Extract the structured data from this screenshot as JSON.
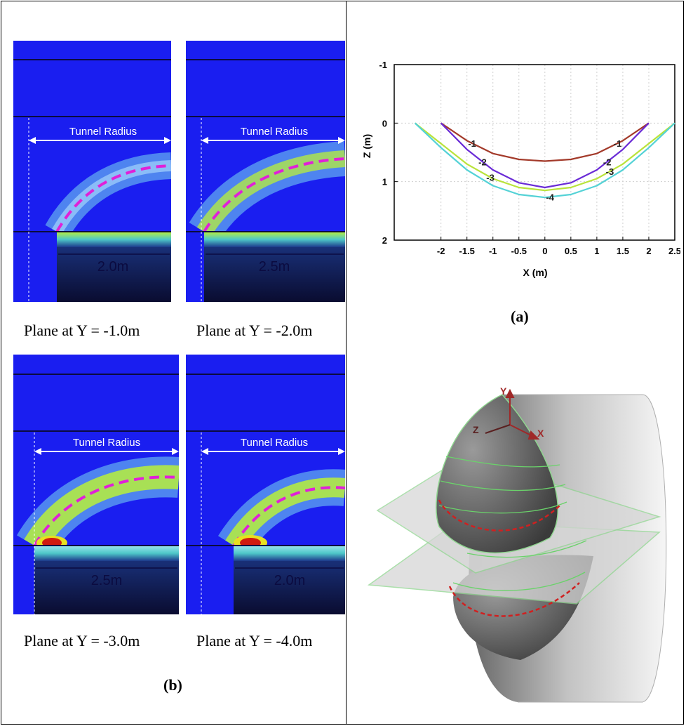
{
  "panels": [
    {
      "caption": "Plane at Y = -1.0m",
      "radius_label": "Tunnel Radius",
      "span_label": "2.0m",
      "has_red": false
    },
    {
      "caption": "Plane at Y = -2.0m",
      "radius_label": "Tunnel Radius",
      "span_label": "2.5m",
      "has_red": false
    },
    {
      "caption": "Plane at Y = -3.0m",
      "radius_label": "Tunnel Radius",
      "span_label": "2.5m",
      "has_red": true
    },
    {
      "caption": "Plane at Y = -4.0m",
      "radius_label": "Tunnel Radius",
      "span_label": "2.0m",
      "has_red": true
    }
  ],
  "labels": {
    "a": "(a)",
    "b": "(b)"
  },
  "chart_data": {
    "type": "line",
    "title": "",
    "xlabel": "X (m)",
    "ylabel": "Z (m)",
    "xlim": [
      -2.9,
      2.5
    ],
    "ylim": [
      -1,
      2
    ],
    "y_inverted": true,
    "x_ticks": [
      "-2",
      "-1.5",
      "-1",
      "-0.5",
      "0",
      "0.5",
      "1",
      "1.5",
      "2",
      "2.5"
    ],
    "y_ticks": [
      "-1",
      "0",
      "1",
      "2"
    ],
    "grid": true,
    "series": [
      {
        "name": "-1",
        "color": "#a33a2a",
        "x": [
          -2.0,
          -1.5,
          -1.0,
          -0.5,
          0,
          0.5,
          1.0,
          1.5,
          2.0
        ],
        "y": [
          0.0,
          0.3,
          0.52,
          0.62,
          0.65,
          0.62,
          0.52,
          0.3,
          0.0
        ]
      },
      {
        "name": "-2",
        "color": "#6a2bd6",
        "x": [
          -2.0,
          -1.5,
          -1.0,
          -0.5,
          0,
          0.5,
          1.0,
          1.5,
          2.0
        ],
        "y": [
          0.0,
          0.45,
          0.8,
          1.02,
          1.1,
          1.02,
          0.8,
          0.45,
          0.0
        ]
      },
      {
        "name": "-3",
        "color": "#b9e33a",
        "x": [
          -2.5,
          -2.0,
          -1.5,
          -1.0,
          -0.5,
          0,
          0.5,
          1.0,
          1.5,
          2.0,
          2.5
        ],
        "y": [
          0.0,
          0.35,
          0.7,
          0.95,
          1.1,
          1.15,
          1.1,
          0.95,
          0.7,
          0.35,
          0.0
        ]
      },
      {
        "name": "-4",
        "color": "#54d2d6",
        "x": [
          -2.5,
          -2.0,
          -1.5,
          -1.0,
          -0.5,
          0,
          0.5,
          1.0,
          1.5,
          2.0,
          2.5
        ],
        "y": [
          0.0,
          0.42,
          0.8,
          1.07,
          1.22,
          1.27,
          1.22,
          1.07,
          0.8,
          0.42,
          0.0
        ]
      }
    ],
    "annotations": [
      "-1",
      "-1",
      "-2",
      "-2",
      "-3",
      "-3",
      "-4",
      "-4"
    ]
  },
  "sketch_axes": {
    "x": "X",
    "y": "Y",
    "z": "Z"
  }
}
